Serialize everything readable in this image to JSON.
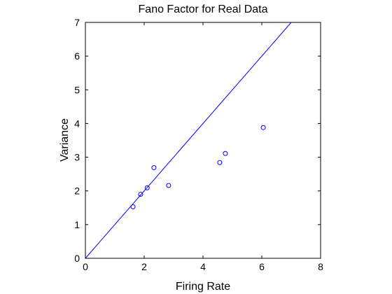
{
  "chart_data": {
    "type": "scatter",
    "title": "Fano Factor for Real Data",
    "xlabel": "Firing Rate",
    "ylabel": "Variance",
    "xlim": [
      0,
      8
    ],
    "ylim": [
      0,
      7
    ],
    "xticks": [
      0,
      2,
      4,
      6,
      8
    ],
    "yticks": [
      0,
      1,
      2,
      3,
      4,
      5,
      6,
      7
    ],
    "grid": false,
    "series": [
      {
        "color": "#0000ff",
        "marker": "circle-open",
        "points": [
          {
            "x": 1.62,
            "y": 1.53
          },
          {
            "x": 1.88,
            "y": 1.9
          },
          {
            "x": 2.1,
            "y": 2.09
          },
          {
            "x": 2.33,
            "y": 2.69
          },
          {
            "x": 2.83,
            "y": 2.16
          },
          {
            "x": 4.57,
            "y": 2.84
          },
          {
            "x": 4.76,
            "y": 3.11
          },
          {
            "x": 6.05,
            "y": 3.88
          }
        ]
      }
    ],
    "reference_line": {
      "color": "#0000ff",
      "from": {
        "x": 0,
        "y": 0
      },
      "to": {
        "x": 7,
        "y": 7
      }
    }
  }
}
